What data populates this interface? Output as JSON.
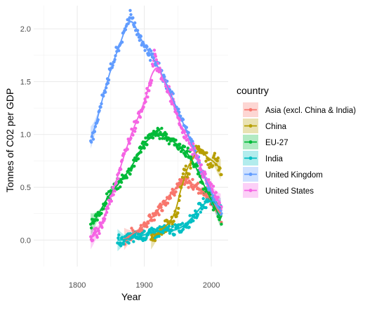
{
  "chart_data": {
    "type": "scatter",
    "title": "",
    "xlabel": "Year",
    "ylabel": "Tonnes of C02 per GDP",
    "xlim": [
      1735,
      2025
    ],
    "ylim": [
      -0.25,
      2.22
    ],
    "x_ticks": [
      1800,
      1900,
      2000
    ],
    "y_ticks": [
      0.0,
      0.5,
      1.0,
      1.5,
      2.0
    ],
    "x_tick_labels": [
      "1800",
      "1900",
      "2000"
    ],
    "y_tick_labels": [
      "0.0",
      "0.5",
      "1.0",
      "1.5",
      "2.0"
    ],
    "grid": true,
    "smoothing": "loess trend line with confidence band per series",
    "legend": {
      "title": "country",
      "position": "right"
    },
    "series": [
      {
        "name": "Asia (excl. China & India)",
        "color": "#F8766D",
        "x": [
          1870,
          1880,
          1890,
          1900,
          1910,
          1920,
          1930,
          1940,
          1950,
          1960,
          1970,
          1980,
          1990,
          2000,
          2010,
          2015
        ],
        "y": [
          0.0,
          0.05,
          0.09,
          0.13,
          0.2,
          0.28,
          0.36,
          0.44,
          0.52,
          0.55,
          0.54,
          0.5,
          0.45,
          0.38,
          0.28,
          0.22
        ]
      },
      {
        "name": "China",
        "color": "#B79F00",
        "x": [
          1910,
          1920,
          1930,
          1940,
          1950,
          1955,
          1960,
          1965,
          1970,
          1975,
          1980,
          1985,
          1990,
          2000,
          2005,
          2010,
          2015
        ],
        "y": [
          0.0,
          0.07,
          0.12,
          0.18,
          0.3,
          0.5,
          0.7,
          0.62,
          0.75,
          0.82,
          0.88,
          0.86,
          0.82,
          0.72,
          0.78,
          0.72,
          0.62
        ]
      },
      {
        "name": "EU-27",
        "color": "#00BA38",
        "x": [
          1820,
          1830,
          1840,
          1850,
          1860,
          1870,
          1880,
          1890,
          1900,
          1910,
          1920,
          1930,
          1940,
          1950,
          1960,
          1970,
          1980,
          1990,
          2000,
          2010,
          2015
        ],
        "y": [
          0.13,
          0.22,
          0.35,
          0.45,
          0.52,
          0.6,
          0.68,
          0.8,
          0.92,
          0.98,
          1.02,
          1.0,
          0.95,
          0.9,
          0.85,
          0.78,
          0.65,
          0.5,
          0.38,
          0.25,
          0.18
        ]
      },
      {
        "name": "India",
        "color": "#00BFC4",
        "x": [
          1860,
          1870,
          1880,
          1890,
          1900,
          1910,
          1920,
          1930,
          1940,
          1950,
          1960,
          1970,
          1980,
          1990,
          2000,
          2010,
          2015
        ],
        "y": [
          0.0,
          0.0,
          0.02,
          0.03,
          0.05,
          0.07,
          0.08,
          0.09,
          0.09,
          0.1,
          0.14,
          0.2,
          0.28,
          0.35,
          0.4,
          0.32,
          0.28
        ]
      },
      {
        "name": "United Kingdom",
        "color": "#619CFF",
        "x": [
          1820,
          1830,
          1840,
          1850,
          1860,
          1870,
          1875,
          1880,
          1885,
          1890,
          1900,
          1910,
          1920,
          1930,
          1940,
          1950,
          1960,
          1970,
          1980,
          1990,
          2000,
          2010,
          2015
        ],
        "y": [
          0.92,
          1.15,
          1.4,
          1.62,
          1.8,
          1.95,
          2.08,
          2.15,
          2.05,
          1.95,
          1.85,
          1.75,
          1.65,
          1.52,
          1.38,
          1.22,
          1.08,
          0.92,
          0.75,
          0.6,
          0.45,
          0.3,
          0.25
        ]
      },
      {
        "name": "United States",
        "color": "#F564E3",
        "x": [
          1820,
          1830,
          1840,
          1850,
          1860,
          1870,
          1880,
          1890,
          1900,
          1910,
          1915,
          1920,
          1930,
          1940,
          1950,
          1960,
          1970,
          1980,
          1990,
          2000,
          2010,
          2015
        ],
        "y": [
          0.0,
          0.08,
          0.2,
          0.4,
          0.6,
          0.8,
          1.0,
          1.15,
          1.3,
          1.5,
          1.8,
          1.62,
          1.5,
          1.35,
          1.15,
          1.0,
          0.9,
          0.75,
          0.6,
          0.5,
          0.38,
          0.3
        ]
      }
    ]
  }
}
